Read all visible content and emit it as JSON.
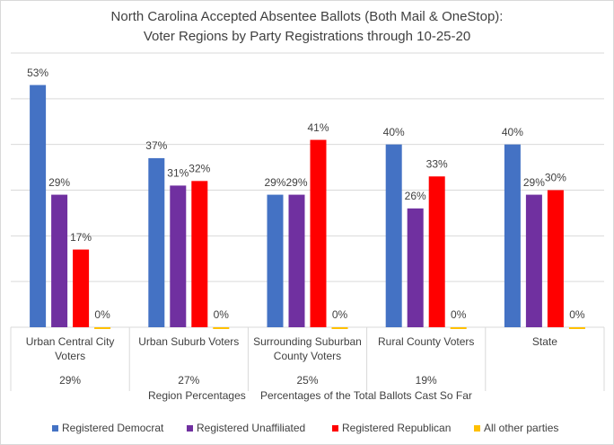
{
  "chart_data": {
    "type": "bar",
    "title": "North Carolina Accepted Absentee Ballots (Both Mail & OneStop):",
    "subtitle": "Voter Regions by Party Registrations through 10-25-20",
    "categories": [
      "Urban Central City Voters",
      "Urban Suburb Voters",
      "Surrounding Suburban County Voters",
      "Rural County Voters",
      "State"
    ],
    "category_shares": [
      "29%",
      "27%",
      "25%",
      "19%",
      null
    ],
    "x_labels": [
      "Region Percentages",
      "Percentages of the Total Ballots Cast So Far"
    ],
    "series": [
      {
        "name": "Registered Democrat",
        "color": "#4472c4",
        "values": [
          53,
          37,
          29,
          40,
          40
        ],
        "value_labels": [
          "53%",
          "37%",
          "29%",
          "40%",
          "40%"
        ]
      },
      {
        "name": "Registered Unaffiliated",
        "color": "#7030a0",
        "values": [
          29,
          31,
          29,
          26,
          29
        ],
        "value_labels": [
          "29%",
          "31%",
          "29%",
          "26%",
          "29%"
        ]
      },
      {
        "name": "Registered Republican",
        "color": "#ff0000",
        "values": [
          17,
          32,
          41,
          33,
          30
        ],
        "value_labels": [
          "17%",
          "32%",
          "41%",
          "33%",
          "30%"
        ]
      },
      {
        "name": "All other parties",
        "color": "#ffc000",
        "values": [
          0,
          0,
          0,
          0,
          0
        ],
        "value_labels": [
          "0%",
          "0%",
          "0%",
          "0%",
          "0%"
        ]
      }
    ],
    "ylim": [
      0,
      60
    ],
    "yticks": [
      0,
      10,
      20,
      30,
      40,
      50,
      60
    ],
    "grid": true,
    "legend": "bottom"
  }
}
